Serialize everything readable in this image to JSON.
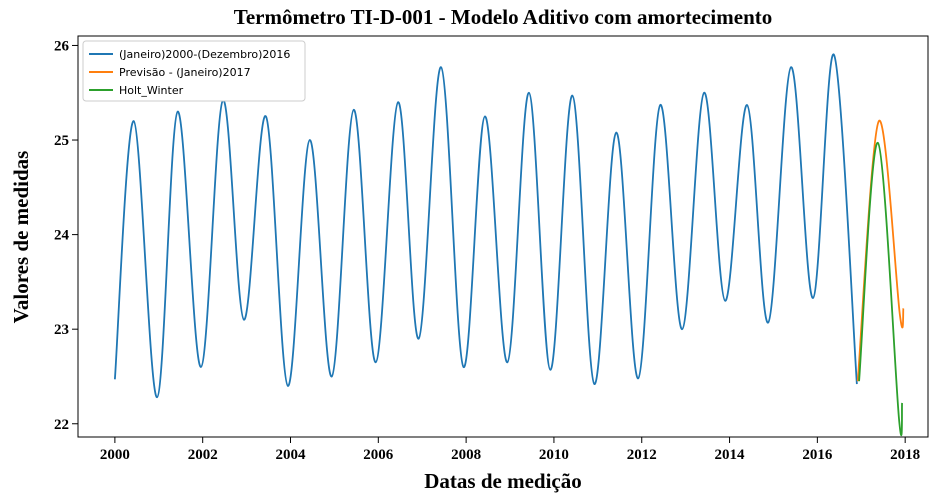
{
  "chart_data": {
    "type": "line",
    "title": "Termômetro TI-D-001 - Modelo Aditivo com amortecimento",
    "xlabel": "Datas de medição",
    "ylabel": "Valores de medidas",
    "xlim": [
      1999.16,
      2018.52
    ],
    "ylim": [
      21.86,
      26.1
    ],
    "xticks": [
      2000,
      2002,
      2004,
      2006,
      2008,
      2010,
      2012,
      2014,
      2016,
      2018
    ],
    "yticks": [
      22,
      23,
      24,
      25,
      26
    ],
    "legend": "upper left",
    "series": [
      {
        "name": "(Janeiro)2000-(Dezembro)2016",
        "color": "#1f77b4",
        "x": [
          2000.0,
          2000.43,
          2000.96,
          2001.43,
          2001.96,
          2002.46,
          2002.94,
          2003.44,
          2003.94,
          2004.44,
          2004.94,
          2005.44,
          2005.94,
          2006.45,
          2006.92,
          2007.43,
          2007.94,
          2008.43,
          2008.94,
          2009.43,
          2009.92,
          2010.42,
          2010.92,
          2011.42,
          2011.92,
          2012.42,
          2012.92,
          2013.42,
          2013.9,
          2014.4,
          2014.88,
          2015.4,
          2015.9,
          2016.38,
          2016.9
        ],
        "values": [
          22.47,
          25.2,
          22.28,
          25.3,
          22.6,
          25.42,
          23.1,
          25.25,
          22.4,
          25.0,
          22.5,
          25.32,
          22.65,
          25.4,
          22.9,
          25.77,
          22.6,
          25.25,
          22.65,
          25.5,
          22.57,
          25.47,
          22.42,
          25.08,
          22.48,
          25.37,
          23.0,
          25.5,
          23.3,
          25.37,
          23.07,
          25.77,
          23.33,
          25.9,
          22.42
        ]
      },
      {
        "name": "Previsão - (Janeiro)2017",
        "color": "#ff7f0e",
        "x": [
          2016.92,
          2017.4,
          2017.88,
          2017.96
        ],
        "values": [
          22.45,
          25.2,
          23.15,
          23.22
        ]
      },
      {
        "name": "Holt_Winter",
        "color": "#2ca02c",
        "x": [
          2016.95,
          2017.38,
          2017.86,
          2017.93
        ],
        "values": [
          22.45,
          24.97,
          22.05,
          22.22
        ]
      }
    ]
  }
}
